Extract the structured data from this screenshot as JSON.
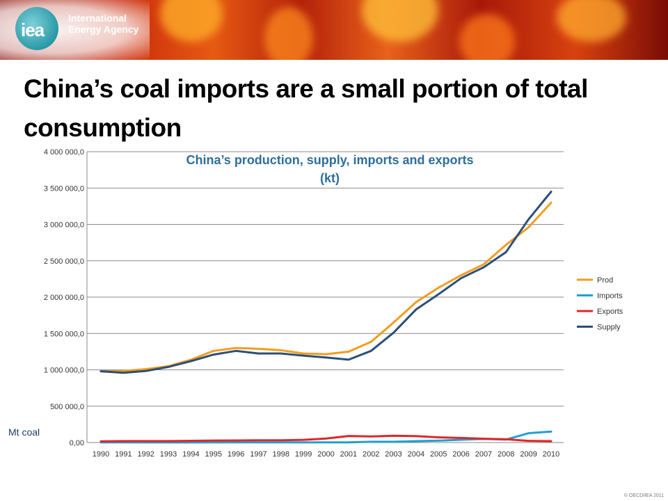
{
  "header": {
    "logo_text": "iea",
    "org_line1": "International",
    "org_line2": "Energy Agency"
  },
  "slide": {
    "title": "China’s coal imports are a small portion of total consumption"
  },
  "footer": {
    "copyright": "© OECD/IEA 2011"
  },
  "colors": {
    "prod": "#f39c1f",
    "imports": "#1fa1d2",
    "exports": "#e0262a",
    "supply": "#2b4f78",
    "title": "#2d6e9c"
  },
  "chart_data": {
    "type": "line",
    "title": "China’s production, supply, imports and exports (kt)",
    "title_lines": [
      "China’s production, supply, imports and exports",
      "(kt)"
    ],
    "ylabel": "Mt coal",
    "xlabel": "",
    "ylim": [
      0,
      4000000
    ],
    "yticks": [
      0,
      500000,
      1000000,
      1500000,
      2000000,
      2500000,
      3000000,
      3500000,
      4000000
    ],
    "ytick_labels": [
      "0,00",
      "500 000,0",
      "1 000 000,0",
      "1 500 000,0",
      "2 000 000,0",
      "2 500 000,0",
      "3 000 000,0",
      "3 500 000,0",
      "4 000 000,0"
    ],
    "x": [
      "1990",
      "1991",
      "1992",
      "1993",
      "1994",
      "1995",
      "1996",
      "1997",
      "1998",
      "1999",
      "2000",
      "2001",
      "2002",
      "2003",
      "2004",
      "2005",
      "2006",
      "2007",
      "2008",
      "2009",
      "2010"
    ],
    "grid": true,
    "legend_position": "right",
    "series": [
      {
        "name": "Prod",
        "color": "#f39c1f",
        "values": [
          980000,
          985000,
          1010000,
          1050000,
          1140000,
          1260000,
          1300000,
          1290000,
          1270000,
          1225000,
          1215000,
          1250000,
          1385000,
          1650000,
          1930000,
          2130000,
          2300000,
          2450000,
          2720000,
          2960000,
          3300000
        ]
      },
      {
        "name": "Imports",
        "color": "#1fa1d2",
        "values": [
          2000,
          1500,
          1200,
          1100,
          1200,
          1600,
          2400,
          2000,
          1600,
          1700,
          2000,
          2400,
          11000,
          11000,
          19000,
          26000,
          38000,
          51000,
          41000,
          128000,
          150000
        ]
      },
      {
        "name": "Exports",
        "color": "#e0262a",
        "values": [
          17000,
          20000,
          20000,
          20000,
          24000,
          28000,
          29000,
          31000,
          32000,
          37000,
          55000,
          90000,
          84000,
          94000,
          88000,
          72000,
          63000,
          53000,
          45000,
          23000,
          19000
        ]
      },
      {
        "name": "Supply",
        "color": "#2b4f78",
        "values": [
          980000,
          960000,
          985000,
          1040000,
          1120000,
          1210000,
          1260000,
          1225000,
          1225000,
          1195000,
          1170000,
          1140000,
          1260000,
          1510000,
          1830000,
          2040000,
          2260000,
          2410000,
          2620000,
          3070000,
          3450000
        ]
      }
    ]
  }
}
